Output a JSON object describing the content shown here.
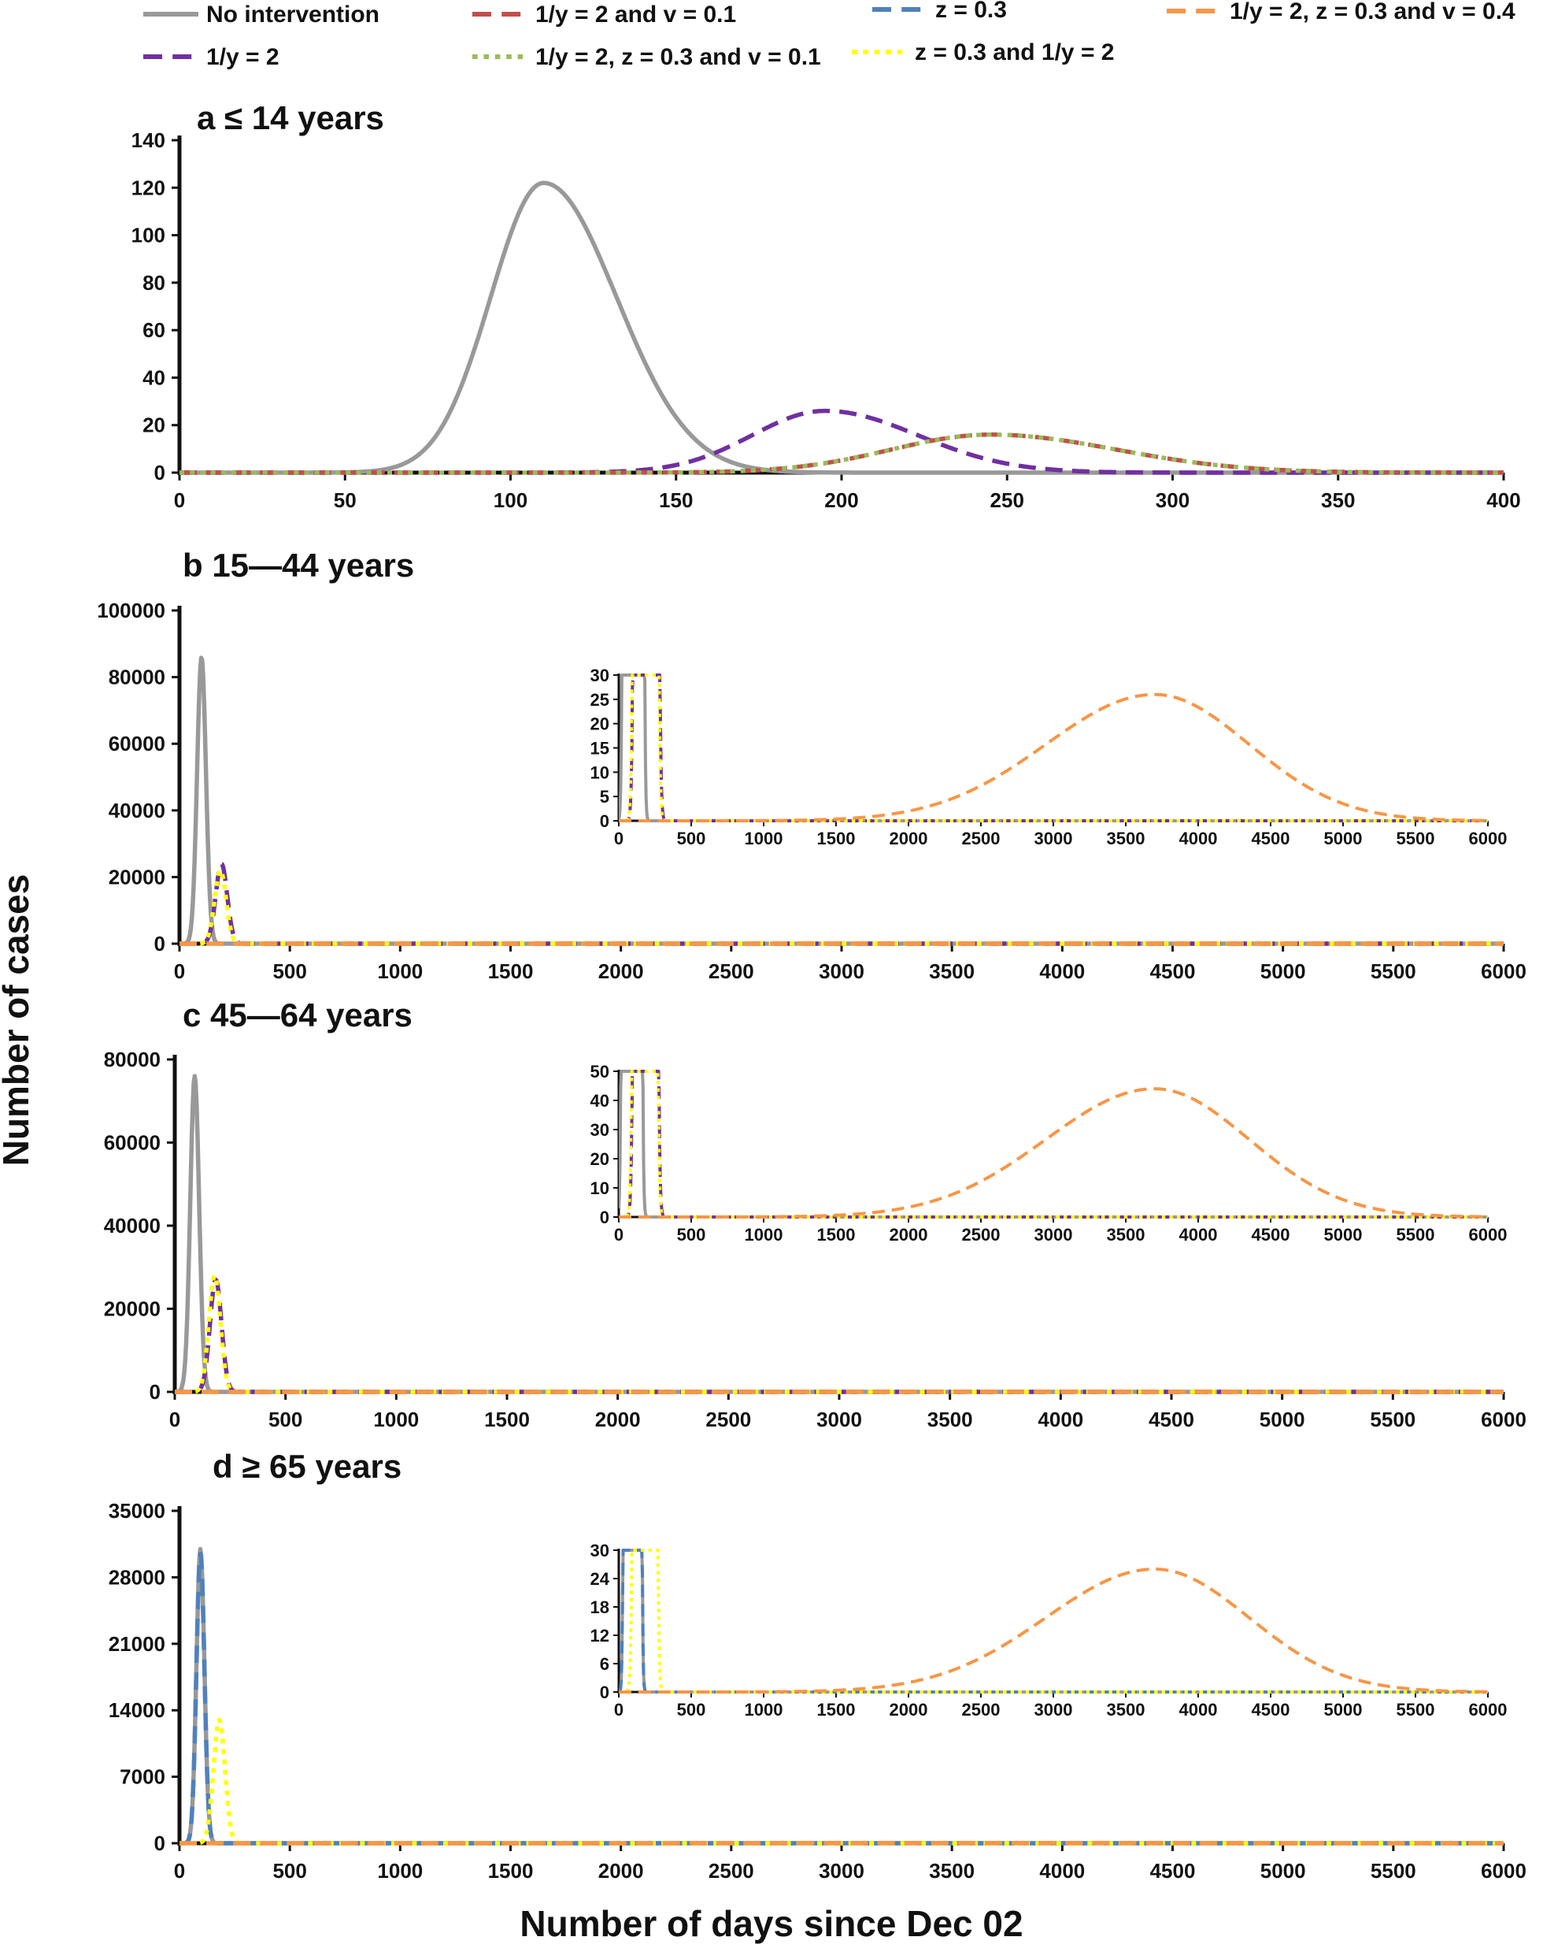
{
  "chart_data": {
    "type": "line",
    "xlabel": "Number of days since Dec 02",
    "ylabel": "Number of cases",
    "legend": [
      {
        "name": "No intervention",
        "color": "#999999",
        "style": "solid"
      },
      {
        "name": "1/y = 2 and v = 0.1",
        "color": "#c0504d",
        "style": "dashed"
      },
      {
        "name": "z = 0.3",
        "color": "#4f81bd",
        "style": "dashed"
      },
      {
        "name": "1/y = 2, z = 0.3 and v = 0.4",
        "color": "#f79646",
        "style": "dashed"
      },
      {
        "name": "1/y = 2",
        "color": "#7030a0",
        "style": "dashed"
      },
      {
        "name": "1/y = 2, z = 0.3 and v = 0.1",
        "color": "#9bbb59",
        "style": "dotted"
      },
      {
        "name": "z = 0.3 and 1/y = 2",
        "color": "#ffff00",
        "style": "dotted"
      }
    ],
    "panels": [
      {
        "id": "a",
        "title": "a",
        "subtitle": "≤ 14 years",
        "xlim": [
          0,
          400
        ],
        "ylim": [
          0,
          140
        ],
        "xticks": [
          "0",
          "50",
          "100",
          "150",
          "200",
          "250",
          "300",
          "350",
          "400"
        ],
        "yticks": [
          "0",
          "20",
          "40",
          "60",
          "80",
          "100",
          "120",
          "140"
        ],
        "series": [
          {
            "name": "No intervention",
            "peak_day": 110,
            "peak": 122,
            "width_left": 16,
            "width_right": 22
          },
          {
            "name": "1/y = 2",
            "peak_day": 195,
            "peak": 26,
            "width_left": 22,
            "width_right": 28
          },
          {
            "name": "1/y = 2, z = 0.3 and v = 0.1",
            "peak_day": 245,
            "peak": 16,
            "width_left": 30,
            "width_right": 38
          },
          {
            "name": "1/y = 2 and v = 0.1",
            "peak_day": 245,
            "peak": 16,
            "width_left": 30,
            "width_right": 38
          }
        ]
      },
      {
        "id": "b",
        "title": "b",
        "subtitle": "15—44 years",
        "xlim": [
          0,
          6000
        ],
        "ylim": [
          0,
          100000
        ],
        "xticks": [
          "0",
          "500",
          "1000",
          "1500",
          "2000",
          "2500",
          "3000",
          "3500",
          "4000",
          "4500",
          "5000",
          "5500",
          "6000"
        ],
        "yticks": [
          "0",
          "20000",
          "40000",
          "60000",
          "80000",
          "100000"
        ],
        "series": [
          {
            "name": "No intervention",
            "peak_day": 100,
            "peak": 86000,
            "width_left": 20,
            "width_right": 20
          },
          {
            "name": "1/y = 2",
            "peak_day": 190,
            "peak": 24000,
            "width_left": 26,
            "width_right": 26
          },
          {
            "name": "z = 0.3 and 1/y = 2",
            "peak_day": 185,
            "peak": 22000,
            "width_left": 26,
            "width_right": 26
          },
          {
            "name": "1/y = 2, z = 0.3 and v = 0.4",
            "peak_day": 3700,
            "peak": 26,
            "width_left": 750,
            "width_right": 650
          }
        ],
        "inset": {
          "xlim": [
            0,
            6000
          ],
          "ylim": [
            0,
            30
          ],
          "xticks": [
            "0",
            "500",
            "1000",
            "1500",
            "2000",
            "2500",
            "3000",
            "3500",
            "4000",
            "4500",
            "5000",
            "5500",
            "6000"
          ],
          "yticks": [
            "0",
            "5",
            "10",
            "15",
            "20",
            "25",
            "30"
          ]
        }
      },
      {
        "id": "c",
        "title": "c",
        "subtitle": "45—64 years",
        "xlim": [
          0,
          6000
        ],
        "ylim": [
          0,
          80000
        ],
        "xticks": [
          "0",
          "500",
          "1000",
          "1500",
          "2000",
          "2500",
          "3000",
          "3500",
          "4000",
          "4500",
          "5000",
          "5500",
          "6000"
        ],
        "yticks": [
          "0",
          "20000",
          "40000",
          "60000",
          "80000"
        ],
        "series": [
          {
            "name": "No intervention",
            "peak_day": 90,
            "peak": 76000,
            "width_left": 20,
            "width_right": 20
          },
          {
            "name": "1/y = 2",
            "peak_day": 185,
            "peak": 27000,
            "width_left": 26,
            "width_right": 26
          },
          {
            "name": "z = 0.3 and 1/y = 2",
            "peak_day": 180,
            "peak": 28000,
            "width_left": 26,
            "width_right": 26
          },
          {
            "name": "1/y = 2, z = 0.3 and v = 0.4",
            "peak_day": 3700,
            "peak": 44,
            "width_left": 750,
            "width_right": 650
          }
        ],
        "inset": {
          "xlim": [
            0,
            6000
          ],
          "ylim": [
            0,
            50
          ],
          "xticks": [
            "0",
            "500",
            "1000",
            "1500",
            "2000",
            "2500",
            "3000",
            "3500",
            "4000",
            "4500",
            "5000",
            "5500",
            "6000"
          ],
          "yticks": [
            "0",
            "10",
            "20",
            "30",
            "40",
            "50"
          ]
        }
      },
      {
        "id": "d",
        "title": "d",
        "subtitle": "≥ 65 years",
        "xlim": [
          0,
          6000
        ],
        "ylim": [
          0,
          35000
        ],
        "xticks": [
          "0",
          "500",
          "1000",
          "1500",
          "2000",
          "2500",
          "3000",
          "3500",
          "4000",
          "4500",
          "5000",
          "5500",
          "6000"
        ],
        "yticks": [
          "0",
          "7000",
          "14000",
          "21000",
          "28000",
          "35000"
        ],
        "series": [
          {
            "name": "No intervention",
            "peak_day": 95,
            "peak": 31000,
            "width_left": 18,
            "width_right": 18
          },
          {
            "name": "z = 0.3",
            "peak_day": 95,
            "peak": 30500,
            "width_left": 18,
            "width_right": 18
          },
          {
            "name": "z = 0.3 and 1/y = 2",
            "peak_day": 180,
            "peak": 13000,
            "width_left": 26,
            "width_right": 26
          },
          {
            "name": "1/y = 2, z = 0.3 and v = 0.4",
            "peak_day": 3700,
            "peak": 26,
            "width_left": 750,
            "width_right": 650
          }
        ],
        "inset": {
          "xlim": [
            0,
            6000
          ],
          "ylim": [
            0,
            30
          ],
          "xticks": [
            "0",
            "500",
            "1000",
            "1500",
            "2000",
            "2500",
            "3000",
            "3500",
            "4000",
            "4500",
            "5000",
            "5500",
            "6000"
          ],
          "yticks": [
            "0",
            "6",
            "12",
            "18",
            "24",
            "30"
          ]
        }
      }
    ]
  }
}
